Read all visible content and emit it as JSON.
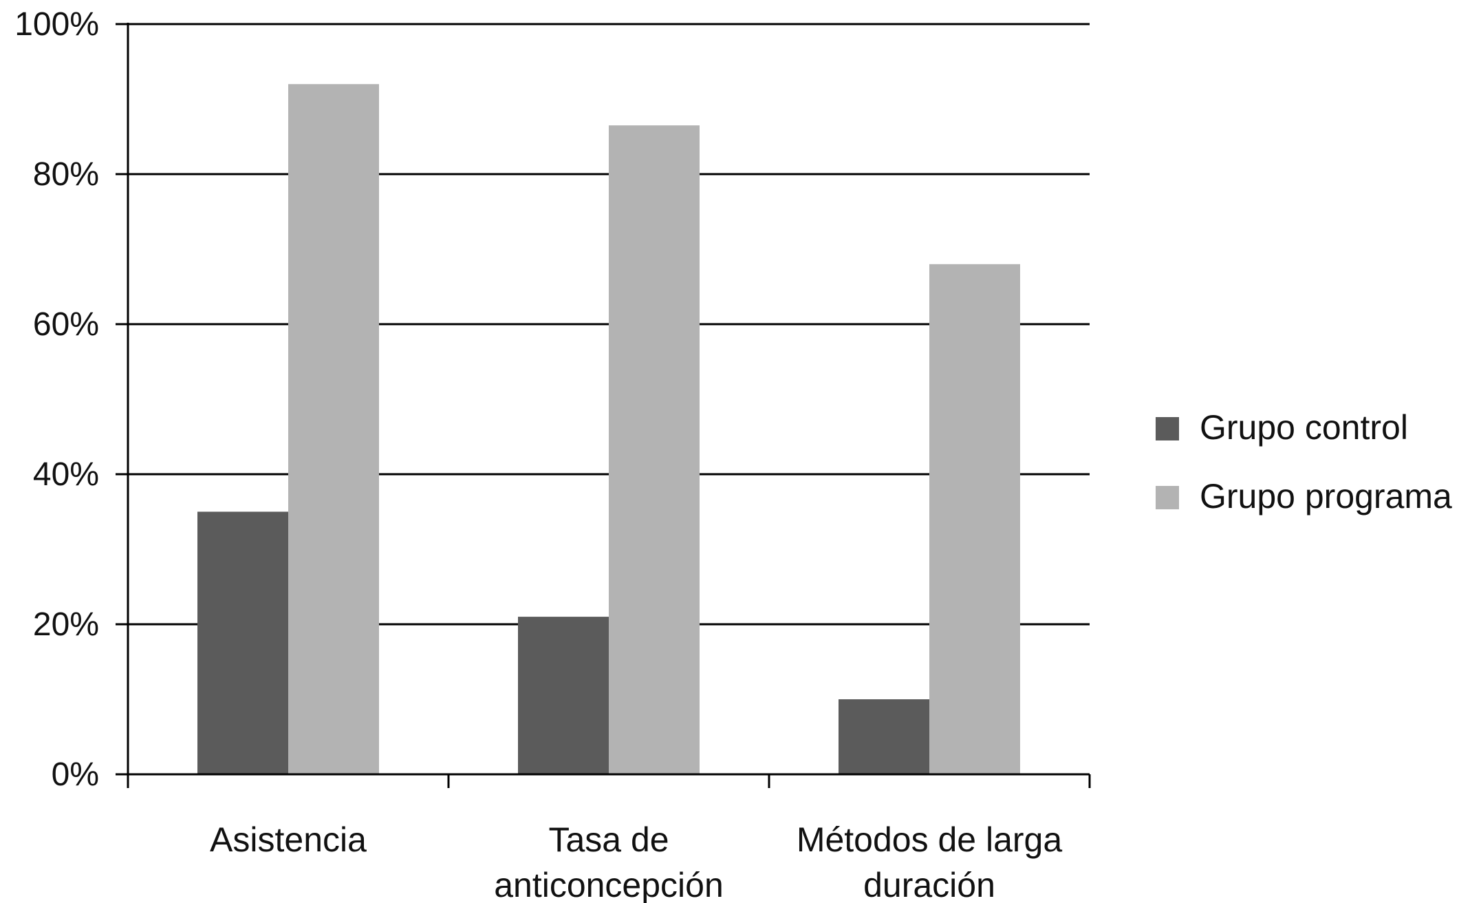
{
  "chart_data": {
    "type": "bar",
    "title": "",
    "xlabel": "",
    "ylabel": "",
    "categories": [
      [
        "Asistencia"
      ],
      [
        "Tasa de",
        "anticoncepción"
      ],
      [
        "Métodos de larga",
        "duración"
      ]
    ],
    "series": [
      {
        "name": "Grupo control",
        "color": "#5b5b5b",
        "values": [
          35,
          21,
          10
        ]
      },
      {
        "name": "Grupo programa",
        "color": "#b3b3b3",
        "values": [
          92,
          86.5,
          68
        ]
      }
    ],
    "ylim": [
      0,
      100
    ],
    "y_ticks": [
      0,
      20,
      40,
      60,
      80,
      100
    ],
    "y_tick_labels": [
      "0%",
      "20%",
      "40%",
      "60%",
      "80%",
      "100%"
    ],
    "grid": true,
    "legend_position": "right"
  }
}
